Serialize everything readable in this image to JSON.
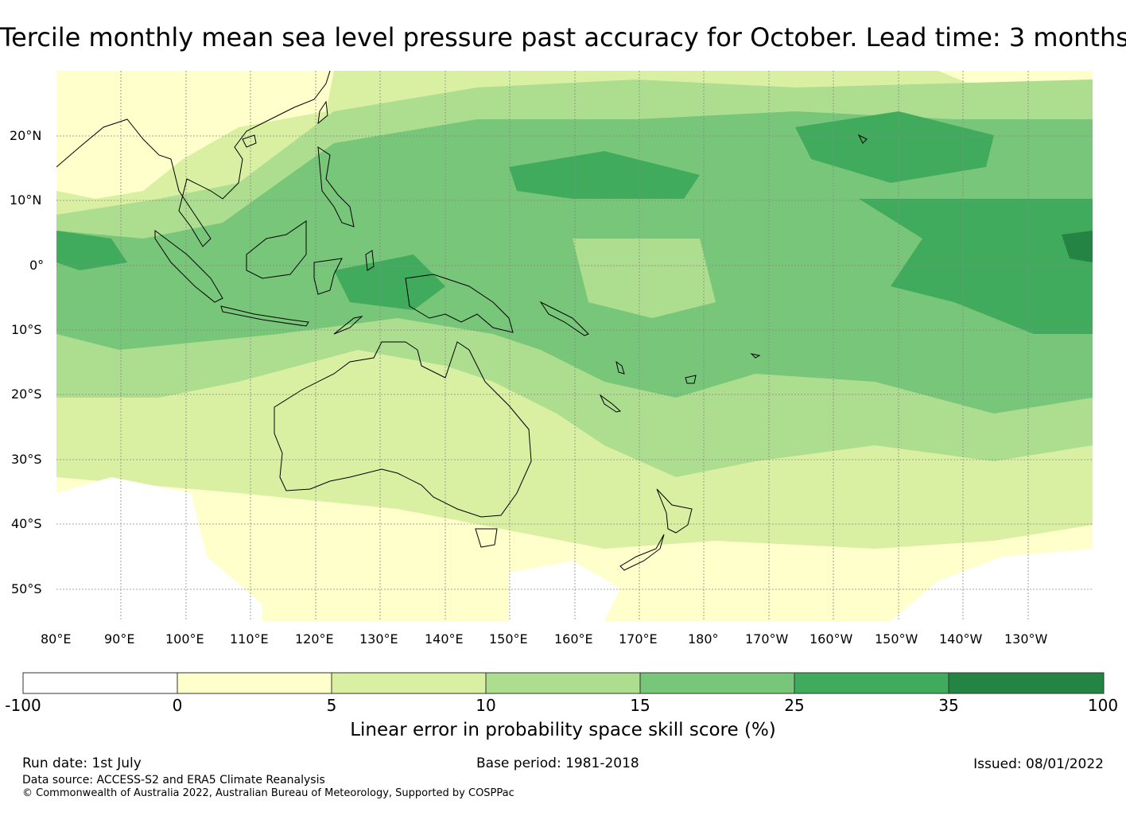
{
  "title": "Tercile monthly mean sea level pressure past accuracy for October. Lead time: 3 months",
  "map": {
    "lon_labels": [
      "80°E",
      "90°E",
      "100°E",
      "110°E",
      "120°E",
      "130°E",
      "140°E",
      "150°E",
      "160°E",
      "170°E",
      "180°",
      "170°W",
      "160°W",
      "150°W",
      "140°W",
      "130°W"
    ],
    "lat_labels": [
      "20°N",
      "10°N",
      "0°",
      "10°S",
      "20°S",
      "30°S",
      "40°S",
      "50°S"
    ],
    "lon_range": [
      80,
      240
    ],
    "lat_range": [
      -55,
      30
    ],
    "land_outline_color": "#000000",
    "grid": "dotted"
  },
  "colorbar": {
    "ticks": [
      "-100",
      "0",
      "5",
      "10",
      "15",
      "25",
      "35",
      "100"
    ],
    "colors": [
      "#ffffff",
      "#ffffcc",
      "#d9f0a3",
      "#addd8e",
      "#78c679",
      "#41ab5d",
      "#238443"
    ],
    "label": "Linear error in probability space skill score (%)"
  },
  "footer": {
    "run_date": "Run date: 1st July",
    "base_period": "Base period: 1981-2018",
    "issued": "Issued: 08/01/2022",
    "data_source": "Data source: ACCESS-S2 and ERA5 Climate Reanalysis",
    "copyright": "© Commonwealth of Australia 2022, Australian Bureau of Meteorology, Supported by COSPPac"
  }
}
